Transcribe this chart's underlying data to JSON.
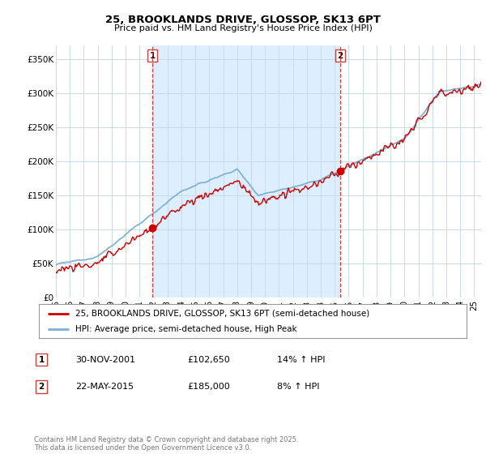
{
  "title": "25, BROOKLANDS DRIVE, GLOSSOP, SK13 6PT",
  "subtitle": "Price paid vs. HM Land Registry's House Price Index (HPI)",
  "ylabel_ticks": [
    "£0",
    "£50K",
    "£100K",
    "£150K",
    "£200K",
    "£250K",
    "£300K",
    "£350K"
  ],
  "ytick_values": [
    0,
    50000,
    100000,
    150000,
    200000,
    250000,
    300000,
    350000
  ],
  "ylim": [
    0,
    370000
  ],
  "xlim_start": 1995.0,
  "xlim_end": 2025.5,
  "sale1_x": 2001.92,
  "sale1_y": 102650,
  "sale1_label": "1",
  "sale2_x": 2015.39,
  "sale2_y": 185000,
  "sale2_label": "2",
  "line_color_red": "#cc0000",
  "line_color_blue": "#7bafd4",
  "vline_color": "#cc4444",
  "grid_color": "#c8daea",
  "highlight_color": "#ddeeff",
  "bg_color": "#ffffff",
  "plot_bg_color": "#ffffff",
  "legend_line1": "25, BROOKLANDS DRIVE, GLOSSOP, SK13 6PT (semi-detached house)",
  "legend_line2": "HPI: Average price, semi-detached house, High Peak",
  "table_row1": [
    "1",
    "30-NOV-2001",
    "£102,650",
    "14% ↑ HPI"
  ],
  "table_row2": [
    "2",
    "22-MAY-2015",
    "£185,000",
    "8% ↑ HPI"
  ],
  "footer": "Contains HM Land Registry data © Crown copyright and database right 2025.\nThis data is licensed under the Open Government Licence v3.0.",
  "xtick_years": [
    1995,
    1996,
    1997,
    1998,
    1999,
    2000,
    2001,
    2002,
    2003,
    2004,
    2005,
    2006,
    2007,
    2008,
    2009,
    2010,
    2011,
    2012,
    2013,
    2014,
    2015,
    2016,
    2017,
    2018,
    2019,
    2020,
    2021,
    2022,
    2023,
    2024,
    2025
  ]
}
